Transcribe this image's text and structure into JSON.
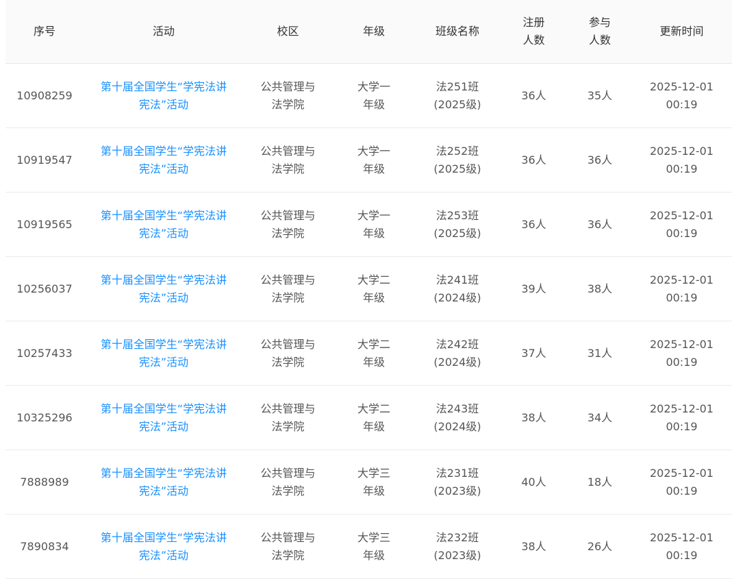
{
  "table": {
    "headers": [
      "序号",
      "活动",
      "校区",
      "年级",
      "班级名称",
      "注册人数",
      "参与人数",
      "更新时间"
    ],
    "rows": [
      {
        "id": "10908259",
        "activity": "第十届全国学生“学宪法讲宪法”活动",
        "campus": "公共管理与法学院",
        "grade": "大学一年级",
        "class_name": "法251班(2025级)",
        "registered": "36人",
        "participated": "35人",
        "updated": "2025-12-01 00:19"
      },
      {
        "id": "10919547",
        "activity": "第十届全国学生“学宪法讲宪法”活动",
        "campus": "公共管理与法学院",
        "grade": "大学一年级",
        "class_name": "法252班(2025级)",
        "registered": "36人",
        "participated": "36人",
        "updated": "2025-12-01 00:19"
      },
      {
        "id": "10919565",
        "activity": "第十届全国学生“学宪法讲宪法”活动",
        "campus": "公共管理与法学院",
        "grade": "大学一年级",
        "class_name": "法253班(2025级)",
        "registered": "36人",
        "participated": "36人",
        "updated": "2025-12-01 00:19"
      },
      {
        "id": "10256037",
        "activity": "第十届全国学生“学宪法讲宪法”活动",
        "campus": "公共管理与法学院",
        "grade": "大学二年级",
        "class_name": "法241班(2024级)",
        "registered": "39人",
        "participated": "38人",
        "updated": "2025-12-01 00:19"
      },
      {
        "id": "10257433",
        "activity": "第十届全国学生“学宪法讲宪法”活动",
        "campus": "公共管理与法学院",
        "grade": "大学二年级",
        "class_name": "法242班(2024级)",
        "registered": "37人",
        "participated": "31人",
        "updated": "2025-12-01 00:19"
      },
      {
        "id": "10325296",
        "activity": "第十届全国学生“学宪法讲宪法”活动",
        "campus": "公共管理与法学院",
        "grade": "大学二年级",
        "class_name": "法243班(2024级)",
        "registered": "38人",
        "participated": "34人",
        "updated": "2025-12-01 00:19"
      },
      {
        "id": "7888989",
        "activity": "第十届全国学生“学宪法讲宪法”活动",
        "campus": "公共管理与法学院",
        "grade": "大学三年级",
        "class_name": "法231班(2023级)",
        "registered": "40人",
        "participated": "18人",
        "updated": "2025-12-01 00:19"
      },
      {
        "id": "7890834",
        "activity": "第十届全国学生“学宪法讲宪法”活动",
        "campus": "公共管理与法学院",
        "grade": "大学三年级",
        "class_name": "法232班(2023级)",
        "registered": "38人",
        "participated": "26人",
        "updated": "2025-12-01 00:19"
      }
    ]
  },
  "colors": {
    "link": "#1890ff",
    "header_bg": "#fafafa"
  }
}
